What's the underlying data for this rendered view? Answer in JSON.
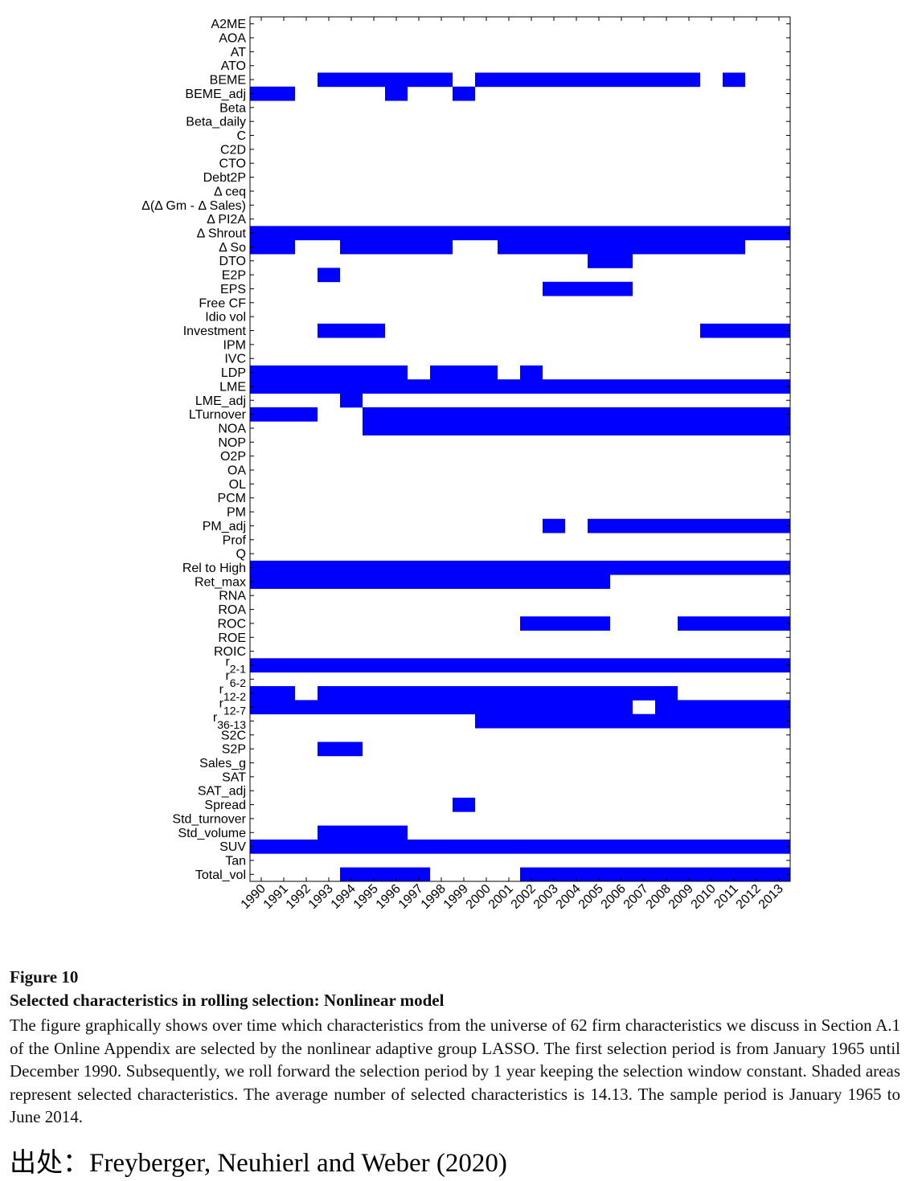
{
  "chart_data": {
    "type": "heatmap",
    "x_categories": [
      "1990",
      "1991",
      "1992",
      "1993",
      "1994",
      "1995",
      "1996",
      "1997",
      "1998",
      "1999",
      "2000",
      "2001",
      "2002",
      "2003",
      "2004",
      "2005",
      "2006",
      "2007",
      "2008",
      "2009",
      "2010",
      "2011",
      "2012",
      "2013"
    ],
    "y_categories": [
      "A2ME",
      "AOA",
      "AT",
      "ATO",
      "BEME",
      "BEME_adj",
      "Beta",
      "Beta_daily",
      "C",
      "C2D",
      "CTO",
      "Debt2P",
      "Δ ceq",
      "Δ(Δ Gm - Δ Sales)",
      "Δ PI2A",
      "Δ Shrout",
      "Δ So",
      "DTO",
      "E2P",
      "EPS",
      "Free CF",
      "Idio vol",
      "Investment",
      "IPM",
      "IVC",
      "LDP",
      "LME",
      "LME_adj",
      "LTurnover",
      "NOA",
      "NOP",
      "O2P",
      "OA",
      "OL",
      "PCM",
      "PM",
      "PM_adj",
      "Prof",
      "Q",
      "Rel to High",
      "Ret_max",
      "RNA",
      "ROA",
      "ROC",
      "ROE",
      "ROIC",
      "r2-1",
      "r6-2",
      "r12-2",
      "r12-7",
      "r36-13",
      "S2C",
      "S2P",
      "Sales_g",
      "SAT",
      "SAT_adj",
      "Spread",
      "Std_turnover",
      "Std_volume",
      "SUV",
      "Tan",
      "Total_vol"
    ],
    "selected_color": "#0000ff",
    "selected_spans": {
      "BEME": [
        [
          1993,
          1998
        ],
        [
          2000,
          2009
        ],
        [
          2011,
          2011
        ]
      ],
      "BEME_adj": [
        [
          1990,
          1991
        ],
        [
          1996,
          1996
        ],
        [
          1999,
          1999
        ]
      ],
      "Δ Shrout": [
        [
          1990,
          2013
        ]
      ],
      "Δ So": [
        [
          1990,
          1991
        ],
        [
          1994,
          1998
        ],
        [
          2001,
          2011
        ]
      ],
      "DTO": [
        [
          2005,
          2006
        ]
      ],
      "E2P": [
        [
          1993,
          1993
        ]
      ],
      "EPS": [
        [
          2003,
          2006
        ]
      ],
      "Investment": [
        [
          1993,
          1995
        ],
        [
          2010,
          2013
        ]
      ],
      "LDP": [
        [
          1990,
          1996
        ],
        [
          1998,
          2000
        ],
        [
          2002,
          2002
        ]
      ],
      "LME": [
        [
          1990,
          2013
        ]
      ],
      "LME_adj": [
        [
          1994,
          1994
        ]
      ],
      "LTurnover": [
        [
          1990,
          1992
        ],
        [
          1995,
          2013
        ]
      ],
      "NOA": [
        [
          1995,
          2013
        ]
      ],
      "PM_adj": [
        [
          2003,
          2003
        ],
        [
          2005,
          2013
        ]
      ],
      "Rel to High": [
        [
          1990,
          2013
        ]
      ],
      "Ret_max": [
        [
          1990,
          2005
        ]
      ],
      "ROC": [
        [
          2002,
          2005
        ],
        [
          2009,
          2013
        ]
      ],
      "r2-1": [
        [
          1990,
          2013
        ]
      ],
      "r12-2": [
        [
          1990,
          1991
        ],
        [
          1993,
          2008
        ]
      ],
      "r12-7": [
        [
          1990,
          2006
        ],
        [
          2008,
          2013
        ]
      ],
      "r36-13": [
        [
          2000,
          2013
        ]
      ],
      "S2P": [
        [
          1993,
          1994
        ]
      ],
      "Spread": [
        [
          1999,
          1999
        ]
      ],
      "Std_volume": [
        [
          1993,
          1996
        ]
      ],
      "SUV": [
        [
          1990,
          2013
        ]
      ],
      "Total_vol": [
        [
          1994,
          1997
        ],
        [
          2002,
          2013
        ]
      ]
    },
    "grid": false,
    "legend": "none"
  },
  "caption": {
    "figure_number": "Figure 10",
    "title": "Selected characteristics in rolling selection: Nonlinear model",
    "description": "The figure graphically shows over time which characteristics from the universe of 62 firm characteristics we discuss in Section A.1 of the Online Appendix are selected by the nonlinear adaptive group LASSO. The first selection period is from January 1965 until December 1990. Subsequently, we roll forward the selection period by 1 year keeping the selection window constant. Shaded areas represent selected characteristics. The average number of selected characteristics is 14.13. The sample period is January 1965 to June 2014."
  },
  "source": "出处：Freyberger, Neuhierl and Weber (2020)"
}
